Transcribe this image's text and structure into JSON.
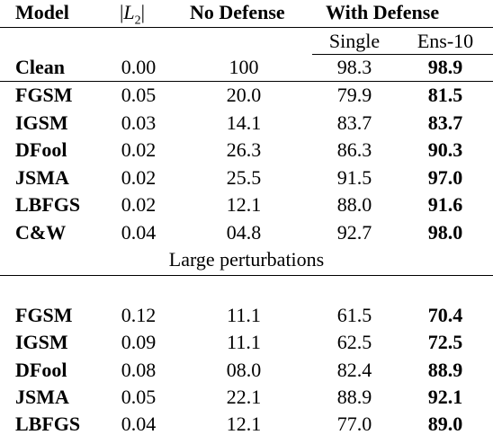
{
  "header": {
    "model": "Model",
    "l2_bar_left": "|",
    "l2_var": "L",
    "l2_sub": "2",
    "l2_bar_right": "|",
    "no_defense": "No Defense",
    "with_defense": "With Defense",
    "single": "Single",
    "ens": "Ens-10"
  },
  "clean": {
    "model": "Clean",
    "l2": "0.00",
    "no_defense": "100",
    "single": "98.3",
    "ens": "98.9"
  },
  "small": [
    {
      "model": "FGSM",
      "l2": "0.05",
      "no_defense": "20.0",
      "single": "79.9",
      "ens": "81.5"
    },
    {
      "model": "IGSM",
      "l2": "0.03",
      "no_defense": "14.1",
      "single": "83.7",
      "ens": "83.7"
    },
    {
      "model": "DFool",
      "l2": "0.02",
      "no_defense": "26.3",
      "single": "86.3",
      "ens": "90.3"
    },
    {
      "model": "JSMA",
      "l2": "0.02",
      "no_defense": "25.5",
      "single": "91.5",
      "ens": "97.0"
    },
    {
      "model": "LBFGS",
      "l2": "0.02",
      "no_defense": "12.1",
      "single": "88.0",
      "ens": "91.6"
    },
    {
      "model": "C&W",
      "l2": "0.04",
      "no_defense": "04.8",
      "single": "92.7",
      "ens": "98.0"
    }
  ],
  "large_caption": "Large perturbations",
  "large": [
    {
      "model": "FGSM",
      "l2": "0.12",
      "no_defense": "11.1",
      "single": "61.5",
      "ens": "70.4"
    },
    {
      "model": "IGSM",
      "l2": "0.09",
      "no_defense": "11.1",
      "single": "62.5",
      "ens": "72.5"
    },
    {
      "model": "DFool",
      "l2": "0.08",
      "no_defense": "08.0",
      "single": "82.4",
      "ens": "88.9"
    },
    {
      "model": "JSMA",
      "l2": "0.05",
      "no_defense": "22.1",
      "single": "88.9",
      "ens": "92.1"
    },
    {
      "model": "LBFGS",
      "l2": "0.04",
      "no_defense": "12.1",
      "single": "77.0",
      "ens": "89.0"
    }
  ]
}
